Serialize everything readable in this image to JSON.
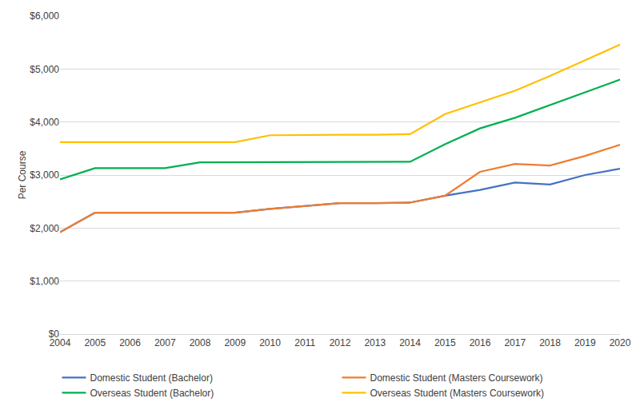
{
  "chart_data": {
    "type": "line",
    "y_label": "Per Course",
    "categories": [
      "2004",
      "2005",
      "2006",
      "2007",
      "2008",
      "2009",
      "2010",
      "2011",
      "2012",
      "2013",
      "2014",
      "2015",
      "2016",
      "2017",
      "2018",
      "2019",
      "2020"
    ],
    "series": [
      {
        "name": "Domestic Student (Bachelor)",
        "color": "#4472c4",
        "values": [
          1920,
          2290,
          2290,
          2290,
          2290,
          2290,
          2360,
          2420,
          2470,
          2470,
          2480,
          2610,
          2720,
          2860,
          2820,
          3000,
          3120
        ]
      },
      {
        "name": "Domestic Student (Masters Coursework)",
        "color": "#ed7d31",
        "values": [
          1920,
          2290,
          2290,
          2290,
          2290,
          2290,
          2360,
          2420,
          2470,
          2470,
          2480,
          2610,
          3060,
          3210,
          3180,
          3360,
          3570
        ]
      },
      {
        "name": "Overseas Student (Bachelor)",
        "color": "#00b050",
        "values": [
          2920,
          3130,
          3130,
          3130,
          3240,
          3240,
          3240,
          3240,
          3240,
          3240,
          3250,
          3580,
          3880,
          4080,
          4320,
          4560,
          4800
        ]
      },
      {
        "name": "Overseas Student (Masters Coursework)",
        "color": "#ffc000",
        "values": [
          3620,
          3620,
          3620,
          3620,
          3620,
          3620,
          3750,
          3760,
          3760,
          3760,
          3770,
          4150,
          4370,
          4590,
          4870,
          5160,
          5460
        ]
      }
    ],
    "ylim": [
      0,
      6000
    ],
    "yticks": [
      {
        "value": 0,
        "label": "$0"
      },
      {
        "value": 1000,
        "label": "$1,000"
      },
      {
        "value": 2000,
        "label": "$2,000"
      },
      {
        "value": 3000,
        "label": "$3,000"
      },
      {
        "value": 4000,
        "label": "$4,000"
      },
      {
        "value": 5000,
        "label": "$5,000"
      },
      {
        "value": 6000,
        "label": "$6,000"
      }
    ],
    "grid": true,
    "legend": "bottom"
  }
}
